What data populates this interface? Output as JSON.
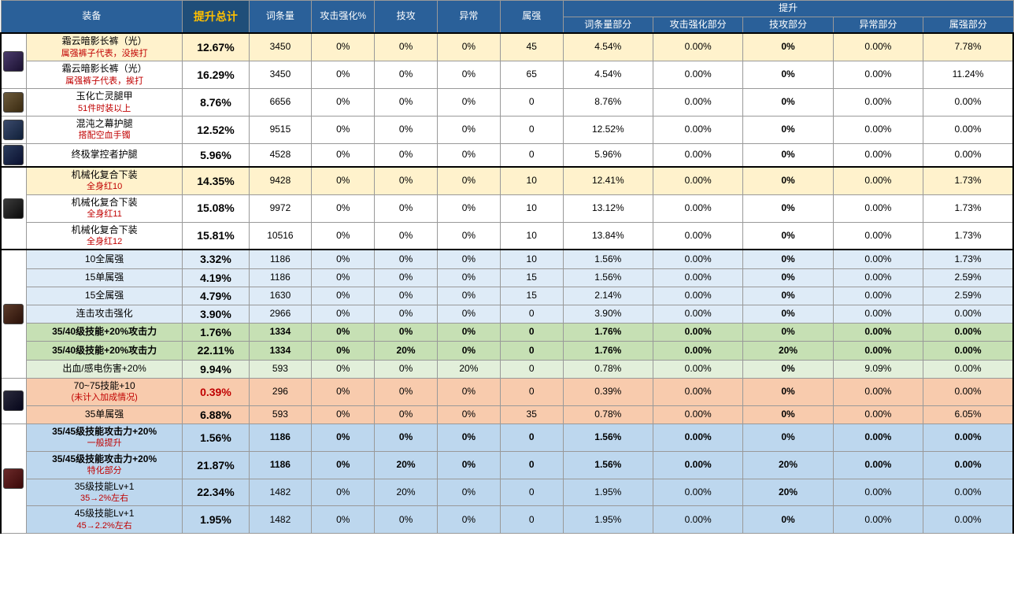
{
  "rowColors": {
    "none": "#ffffff",
    "yellow": "#fff2cc",
    "lightblue": "#deebf7",
    "green": "#c6e0b4",
    "lightgreen": "#e2efda",
    "orange": "#f8cbad",
    "blue": "#bdd7ee"
  },
  "iconColors": {
    "a": "linear-gradient(135deg,#4a3b6b,#1a1030)",
    "b": "linear-gradient(135deg,#6b5a3b,#3a2a10)",
    "c": "linear-gradient(135deg,#3b4a6b,#10203a)",
    "d": "linear-gradient(135deg,#2a3b5b,#0a1030)",
    "e": "linear-gradient(135deg,#3b3b3b,#0a0a0a)",
    "f": "linear-gradient(135deg,#5b3b2a,#2a1008)",
    "g": "linear-gradient(135deg,#2a2a3b,#05051a)",
    "h": "linear-gradient(135deg,#6b2a2a,#3a0808)"
  },
  "header": {
    "equip": "装备",
    "totalBoost": "提升总计",
    "stats": [
      "词条量",
      "攻击强化%",
      "技攻",
      "异常",
      "属强"
    ],
    "partsLabel": "提升",
    "parts": [
      "词条量部分",
      "攻击强化部分",
      "技攻部分",
      "异常部分",
      "属强部分"
    ]
  },
  "sections": [
    {
      "iconGroups": [
        {
          "icon": "a",
          "span": 2
        },
        {
          "icon": "b",
          "span": 1
        },
        {
          "icon": "c",
          "span": 1
        },
        {
          "icon": "d",
          "span": 1
        }
      ],
      "rows": [
        {
          "name": "霜云暗影长裤（光）",
          "sub": "属强裤子代表，没挨打",
          "color": "yellow",
          "total": "12.67%",
          "vals": [
            "3450",
            "0%",
            "0%",
            "0%",
            "45"
          ],
          "parts": [
            "4.54%",
            "0.00%",
            "0%",
            "0.00%",
            "7.78%"
          ]
        },
        {
          "name": "霜云暗影长裤（光）",
          "sub": "属强裤子代表，挨打",
          "color": "none",
          "total": "16.29%",
          "vals": [
            "3450",
            "0%",
            "0%",
            "0%",
            "65"
          ],
          "parts": [
            "4.54%",
            "0.00%",
            "0%",
            "0.00%",
            "11.24%"
          ]
        },
        {
          "name": "玉化亡灵腿甲",
          "sub": "51件时装以上",
          "color": "none",
          "total": "8.76%",
          "vals": [
            "6656",
            "0%",
            "0%",
            "0%",
            "0"
          ],
          "parts": [
            "8.76%",
            "0.00%",
            "0%",
            "0.00%",
            "0.00%"
          ]
        },
        {
          "name": "混沌之幕护腿",
          "sub": "搭配空血手镯",
          "color": "none",
          "total": "12.52%",
          "vals": [
            "9515",
            "0%",
            "0%",
            "0%",
            "0"
          ],
          "parts": [
            "12.52%",
            "0.00%",
            "0%",
            "0.00%",
            "0.00%"
          ]
        },
        {
          "name": "终极掌控者护腿",
          "sub": "",
          "color": "none",
          "total": "5.96%",
          "vals": [
            "4528",
            "0%",
            "0%",
            "0%",
            "0"
          ],
          "parts": [
            "5.96%",
            "0.00%",
            "0%",
            "0.00%",
            "0.00%"
          ]
        }
      ]
    },
    {
      "iconGroups": [
        {
          "icon": "e",
          "span": 3
        }
      ],
      "rows": [
        {
          "name": "机械化复合下装",
          "sub": "全身红10",
          "color": "yellow",
          "total": "14.35%",
          "vals": [
            "9428",
            "0%",
            "0%",
            "0%",
            "10"
          ],
          "parts": [
            "12.41%",
            "0.00%",
            "0%",
            "0.00%",
            "1.73%"
          ]
        },
        {
          "name": "机械化复合下装",
          "sub": "全身红11",
          "color": "none",
          "total": "15.08%",
          "vals": [
            "9972",
            "0%",
            "0%",
            "0%",
            "10"
          ],
          "parts": [
            "13.12%",
            "0.00%",
            "0%",
            "0.00%",
            "1.73%"
          ]
        },
        {
          "name": "机械化复合下装",
          "sub": "全身红12",
          "color": "none",
          "total": "15.81%",
          "vals": [
            "10516",
            "0%",
            "0%",
            "0%",
            "10"
          ],
          "parts": [
            "13.84%",
            "0.00%",
            "0%",
            "0.00%",
            "1.73%"
          ]
        }
      ]
    },
    {
      "iconGroups": [
        {
          "icon": "f",
          "span": 7
        },
        {
          "icon": "g",
          "span": 2
        },
        {
          "icon": "h",
          "span": 4
        }
      ],
      "rows": [
        {
          "name": "10全属强",
          "sub": "",
          "color": "lightblue",
          "total": "3.32%",
          "vals": [
            "1186",
            "0%",
            "0%",
            "0%",
            "10"
          ],
          "parts": [
            "1.56%",
            "0.00%",
            "0%",
            "0.00%",
            "1.73%"
          ]
        },
        {
          "name": "15单属强",
          "sub": "",
          "color": "lightblue",
          "total": "4.19%",
          "vals": [
            "1186",
            "0%",
            "0%",
            "0%",
            "15"
          ],
          "parts": [
            "1.56%",
            "0.00%",
            "0%",
            "0.00%",
            "2.59%"
          ]
        },
        {
          "name": "15全属强",
          "sub": "",
          "color": "lightblue",
          "total": "4.79%",
          "vals": [
            "1630",
            "0%",
            "0%",
            "0%",
            "15"
          ],
          "parts": [
            "2.14%",
            "0.00%",
            "0%",
            "0.00%",
            "2.59%"
          ]
        },
        {
          "name": "连击攻击强化",
          "sub": "",
          "color": "lightblue",
          "total": "3.90%",
          "vals": [
            "2966",
            "0%",
            "0%",
            "0%",
            "0"
          ],
          "parts": [
            "3.90%",
            "0.00%",
            "0%",
            "0.00%",
            "0.00%"
          ]
        },
        {
          "name": "35/40级技能+20%攻击力",
          "sub": "",
          "color": "green",
          "bold": true,
          "total": "1.76%",
          "vals": [
            "1334",
            "0%",
            "0%",
            "0%",
            "0"
          ],
          "parts": [
            "1.76%",
            "0.00%",
            "0%",
            "0.00%",
            "0.00%"
          ]
        },
        {
          "name": "35/40级技能+20%攻击力",
          "sub": "",
          "color": "green",
          "bold": true,
          "total": "22.11%",
          "vals": [
            "1334",
            "0%",
            "20%",
            "0%",
            "0"
          ],
          "parts": [
            "1.76%",
            "0.00%",
            "20%",
            "0.00%",
            "0.00%"
          ]
        },
        {
          "name": "出血/感电伤害+20%",
          "sub": "",
          "color": "lightgreen",
          "total": "9.94%",
          "vals": [
            "593",
            "0%",
            "0%",
            "20%",
            "0"
          ],
          "parts": [
            "0.78%",
            "0.00%",
            "0%",
            "9.09%",
            "0.00%"
          ]
        },
        {
          "name": "70~75技能+10",
          "sub": "(未计入加成情况)",
          "color": "orange",
          "redTotal": true,
          "total": "0.39%",
          "vals": [
            "296",
            "0%",
            "0%",
            "0%",
            "0"
          ],
          "parts": [
            "0.39%",
            "0.00%",
            "0%",
            "0.00%",
            "0.00%"
          ]
        },
        {
          "name": "35单属强",
          "sub": "",
          "color": "orange",
          "total": "6.88%",
          "vals": [
            "593",
            "0%",
            "0%",
            "0%",
            "35"
          ],
          "parts": [
            "0.78%",
            "0.00%",
            "0%",
            "0.00%",
            "6.05%"
          ]
        },
        {
          "name": "35/45级技能攻击力+20%",
          "sub": "一般提升",
          "color": "blue",
          "bold": true,
          "total": "1.56%",
          "vals": [
            "1186",
            "0%",
            "0%",
            "0%",
            "0"
          ],
          "parts": [
            "1.56%",
            "0.00%",
            "0%",
            "0.00%",
            "0.00%"
          ]
        },
        {
          "name": "35/45级技能攻击力+20%",
          "sub": "特化部分",
          "color": "blue",
          "bold": true,
          "total": "21.87%",
          "vals": [
            "1186",
            "0%",
            "20%",
            "0%",
            "0"
          ],
          "parts": [
            "1.56%",
            "0.00%",
            "20%",
            "0.00%",
            "0.00%"
          ]
        },
        {
          "name": "35级技能Lv+1",
          "sub": "35→2%左右",
          "color": "blue",
          "total": "22.34%",
          "vals": [
            "1482",
            "0%",
            "20%",
            "0%",
            "0"
          ],
          "parts": [
            "1.95%",
            "0.00%",
            "20%",
            "0.00%",
            "0.00%"
          ]
        },
        {
          "name": "45级技能Lv+1",
          "sub": "45→2.2%左右",
          "color": "blue",
          "total": "1.95%",
          "vals": [
            "1482",
            "0%",
            "0%",
            "0%",
            "0"
          ],
          "parts": [
            "1.95%",
            "0.00%",
            "0%",
            "0.00%",
            "0.00%"
          ]
        }
      ]
    }
  ]
}
